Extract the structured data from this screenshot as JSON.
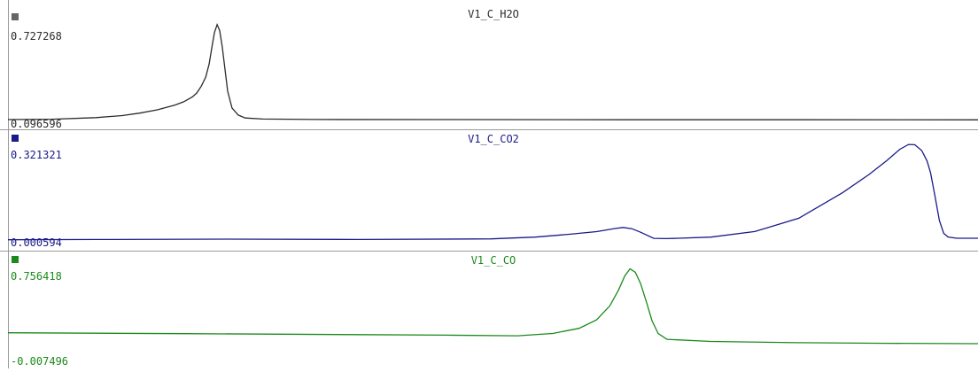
{
  "chart_data": [
    {
      "type": "line",
      "title": "V1_C_H2O",
      "color": "#2b2b2b",
      "marker_color": "#666666",
      "ymax_label": "0.727268",
      "ymin_label": "0.096596",
      "ylim": [
        0.096596,
        0.727268
      ],
      "x": [
        0,
        50,
        100,
        130,
        150,
        170,
        190,
        200,
        210,
        215,
        220,
        225,
        229,
        232,
        235,
        238,
        241,
        244,
        247,
        250,
        255,
        262,
        270,
        290,
        350,
        500,
        700,
        900,
        1104
      ],
      "values": [
        0.1022,
        0.1046,
        0.1148,
        0.1273,
        0.1432,
        0.1644,
        0.1946,
        0.2154,
        0.2469,
        0.2719,
        0.3147,
        0.3712,
        0.4557,
        0.5589,
        0.6558,
        0.7058,
        0.6678,
        0.5599,
        0.4208,
        0.2822,
        0.1761,
        0.1312,
        0.1126,
        0.1056,
        0.103,
        0.102,
        0.1012,
        0.101,
        0.1008
      ]
    },
    {
      "type": "line",
      "title": "V1_C_CO2",
      "color": "#1a1a8a",
      "marker_color": "#1a1a8a",
      "ymax_label": "0.321321",
      "ymin_label": "0.000594",
      "ylim": [
        0.000594,
        0.321321
      ],
      "x": [
        0,
        100,
        250,
        400,
        550,
        600,
        640,
        670,
        690,
        700,
        710,
        720,
        735,
        750,
        800,
        850,
        900,
        950,
        980,
        1000,
        1015,
        1025,
        1032,
        1040,
        1046,
        1050,
        1055,
        1060,
        1065,
        1070,
        1080,
        1104
      ],
      "values": [
        0.0016,
        0.0023,
        0.0034,
        0.0023,
        0.0044,
        0.0102,
        0.0196,
        0.0281,
        0.0378,
        0.0416,
        0.0376,
        0.0259,
        0.0061,
        0.0051,
        0.0101,
        0.0282,
        0.0717,
        0.1554,
        0.2143,
        0.2592,
        0.2966,
        0.3125,
        0.3115,
        0.2924,
        0.2582,
        0.2209,
        0.1443,
        0.0645,
        0.0224,
        0.0103,
        0.0064,
        0.0064
      ]
    },
    {
      "type": "line",
      "title": "V1_C_CO",
      "color": "#1a8a1a",
      "marker_color": "#1a8a1a",
      "ymax_label": "0.756418",
      "ymin_label": "-0.007496",
      "ylim": [
        -0.007496,
        0.756418
      ],
      "x": [
        0,
        200,
        400,
        500,
        580,
        620,
        650,
        670,
        685,
        695,
        702,
        708,
        714,
        720,
        727,
        733,
        740,
        750,
        800,
        900,
        1000,
        1104
      ],
      "values": [
        0.1084,
        0.1008,
        0.0915,
        0.0866,
        0.0813,
        0.1023,
        0.1493,
        0.2272,
        0.3559,
        0.5018,
        0.6308,
        0.6952,
        0.6628,
        0.5602,
        0.381,
        0.2193,
        0.1016,
        0.0489,
        0.0293,
        0.0181,
        0.0124,
        0.0087
      ]
    }
  ]
}
